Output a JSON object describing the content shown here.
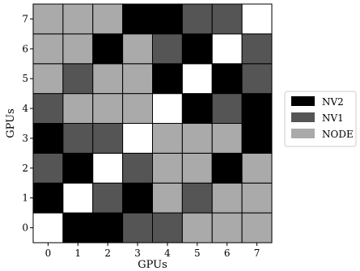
{
  "chart_data": {
    "type": "heatmap",
    "title": "",
    "xlabel": "GPUs",
    "ylabel": "GPUs",
    "x_ticks": [
      "0",
      "1",
      "2",
      "3",
      "4",
      "5",
      "6",
      "7"
    ],
    "y_ticks": [
      "0",
      "1",
      "2",
      "3",
      "4",
      "5",
      "6",
      "7"
    ],
    "grid": false,
    "legend_position": "right",
    "legend": [
      {
        "key": "NV2",
        "label": "NV2",
        "color": "#000000"
      },
      {
        "key": "NV1",
        "label": "NV1",
        "color": "#555555"
      },
      {
        "key": "NODE",
        "label": "NODE",
        "color": "#aaaaaa"
      }
    ],
    "self_color": "#ffffff",
    "matrix": [
      [
        "X",
        "NV2",
        "NV2",
        "NV1",
        "NV1",
        "NODE",
        "NODE",
        "NODE"
      ],
      [
        "NV2",
        "X",
        "NV1",
        "NV2",
        "NODE",
        "NV1",
        "NODE",
        "NODE"
      ],
      [
        "NV1",
        "NV2",
        "X",
        "NV1",
        "NODE",
        "NODE",
        "NV2",
        "NODE"
      ],
      [
        "NV2",
        "NV1",
        "NV1",
        "X",
        "NODE",
        "NODE",
        "NODE",
        "NV2"
      ],
      [
        "NV1",
        "NODE",
        "NODE",
        "NODE",
        "X",
        "NV2",
        "NV1",
        "NV2"
      ],
      [
        "NODE",
        "NV1",
        "NODE",
        "NODE",
        "NV2",
        "X",
        "NV2",
        "NV1"
      ],
      [
        "NODE",
        "NODE",
        "NV2",
        "NODE",
        "NV1",
        "NV2",
        "X",
        "NV1"
      ],
      [
        "NODE",
        "NODE",
        "NODE",
        "NV2",
        "NV2",
        "NV1",
        "NV1",
        "X"
      ]
    ]
  }
}
